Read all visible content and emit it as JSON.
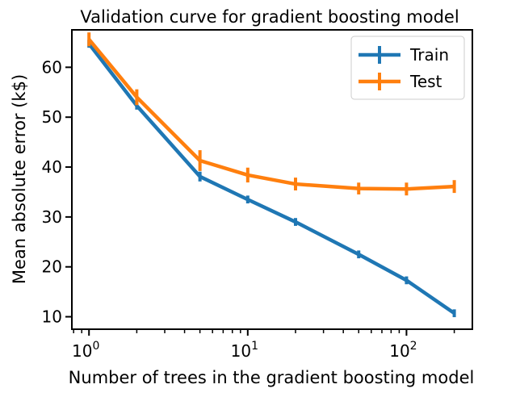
{
  "chart_data": {
    "type": "line",
    "title": "Validation curve for gradient boosting model",
    "xlabel": "Number of trees in the gradient boosting model",
    "ylabel": "Mean absolute error (k$)",
    "xscale": "log",
    "xlim": [
      0.78,
      260
    ],
    "ylim": [
      7.5,
      67.5
    ],
    "x": [
      1,
      2,
      5,
      10,
      20,
      50,
      100,
      200
    ],
    "x_ticks": [
      {
        "value": 1,
        "base": "10",
        "exp": "0"
      },
      {
        "value": 10,
        "base": "10",
        "exp": "1"
      },
      {
        "value": 100,
        "base": "10",
        "exp": "2"
      }
    ],
    "y_ticks": [
      {
        "value": 10,
        "label": "10"
      },
      {
        "value": 20,
        "label": "20"
      },
      {
        "value": 30,
        "label": "30"
      },
      {
        "value": 40,
        "label": "40"
      },
      {
        "value": 50,
        "label": "50"
      },
      {
        "value": 60,
        "label": "60"
      }
    ],
    "grid": false,
    "legend_position": "top-right",
    "series": [
      {
        "name": "Train",
        "color": "#1f77b4",
        "values": [
          64.7,
          52.3,
          38.1,
          33.5,
          29.0,
          22.5,
          17.3,
          10.7
        ],
        "errors": [
          0.3,
          0.3,
          0.5,
          0.3,
          0.3,
          0.3,
          0.3,
          0.3
        ]
      },
      {
        "name": "Test",
        "color": "#ff7f0e",
        "values": [
          65.6,
          54.0,
          41.3,
          38.4,
          36.6,
          35.7,
          35.6,
          36.1
        ],
        "errors": [
          0.9,
          1.1,
          1.6,
          1.0,
          0.8,
          0.7,
          0.8,
          0.8
        ]
      }
    ]
  }
}
